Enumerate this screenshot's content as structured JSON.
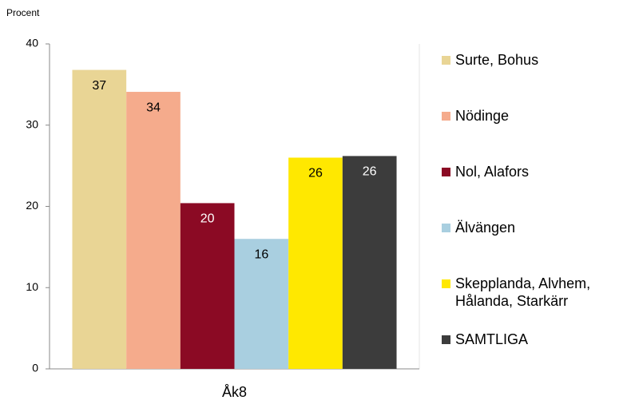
{
  "chart_data": {
    "type": "bar",
    "ylabel": "Procent",
    "categories": [
      "Åk8"
    ],
    "series": [
      {
        "name": "Surte, Bohus",
        "color": "#e9d595",
        "values": [
          36.8
        ],
        "value_labels": [
          "37"
        ]
      },
      {
        "name": "Nödinge",
        "color": "#f5ab8c",
        "values": [
          34.1
        ],
        "value_labels": [
          "34"
        ]
      },
      {
        "name": "Nol, Alafors",
        "color": "#8b0a24",
        "values": [
          20.4
        ],
        "value_labels": [
          "20"
        ]
      },
      {
        "name": "Älvängen",
        "color": "#a9cfe0",
        "values": [
          16.0
        ],
        "value_labels": [
          "16"
        ]
      },
      {
        "name": "Skepplanda, Alvhem, Hålanda, Starkärr",
        "color": "#ffe800",
        "values": [
          26.0
        ],
        "value_labels": [
          "26"
        ]
      },
      {
        "name": "SAMTLIGA",
        "color": "#3c3c3c",
        "values": [
          26.2
        ],
        "value_labels": [
          "26"
        ]
      }
    ],
    "ylim": [
      0,
      40
    ],
    "yticks": [
      0,
      10,
      20,
      30,
      40
    ],
    "grid": false,
    "legend": "right"
  }
}
